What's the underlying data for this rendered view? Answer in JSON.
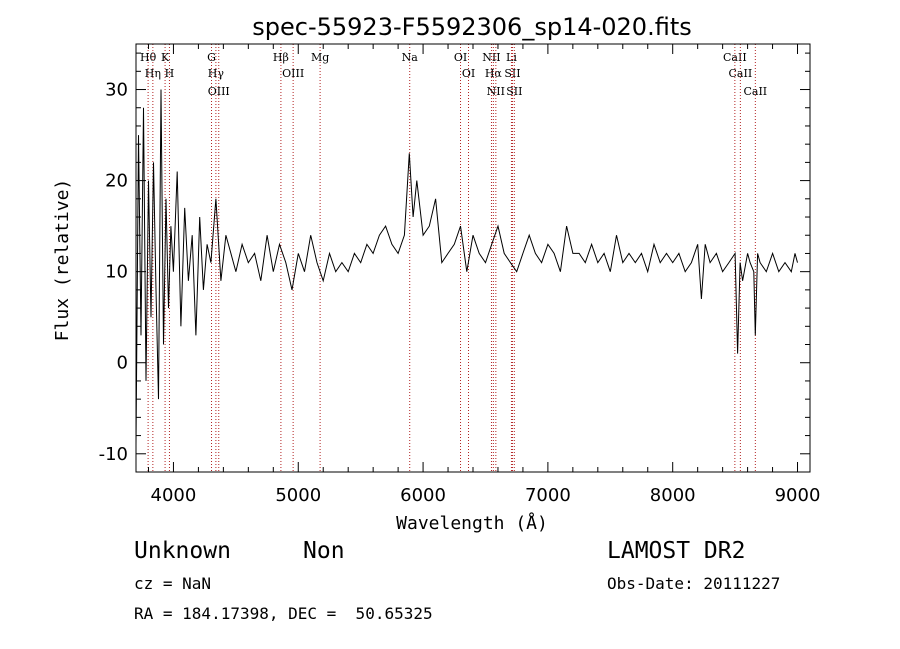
{
  "chart_data": {
    "type": "line",
    "title": "spec-55923-F5592306_sp14-020.fits",
    "xlabel": "Wavelength (Å)",
    "ylabel": "Flux (relative)",
    "xlim": [
      3700,
      9100
    ],
    "ylim": [
      -12,
      35
    ],
    "xticks": [
      4000,
      5000,
      6000,
      7000,
      8000,
      9000
    ],
    "yticks": [
      -10,
      0,
      10,
      20,
      30
    ],
    "grid": false,
    "series": [
      {
        "x": [
          3700,
          3720,
          3740,
          3760,
          3780,
          3800,
          3820,
          3840,
          3860,
          3880,
          3900,
          3920,
          3940,
          3960,
          3980,
          4000,
          4030,
          4060,
          4090,
          4120,
          4150,
          4180,
          4210,
          4240,
          4270,
          4300,
          4340,
          4380,
          4420,
          4460,
          4500,
          4550,
          4600,
          4650,
          4700,
          4750,
          4800,
          4850,
          4900,
          4950,
          5000,
          5050,
          5100,
          5150,
          5200,
          5250,
          5300,
          5350,
          5400,
          5450,
          5500,
          5550,
          5600,
          5650,
          5700,
          5750,
          5800,
          5850,
          5890,
          5920,
          5950,
          6000,
          6050,
          6100,
          6150,
          6200,
          6250,
          6300,
          6350,
          6400,
          6450,
          6500,
          6550,
          6600,
          6650,
          6700,
          6750,
          6800,
          6850,
          6900,
          6950,
          7000,
          7050,
          7100,
          7150,
          7200,
          7250,
          7300,
          7350,
          7400,
          7450,
          7500,
          7550,
          7600,
          7650,
          7700,
          7750,
          7800,
          7850,
          7900,
          7950,
          8000,
          8050,
          8100,
          8150,
          8200,
          8230,
          8260,
          8300,
          8350,
          8400,
          8450,
          8500,
          8520,
          8540,
          8560,
          8600,
          8620,
          8650,
          8662,
          8680,
          8700,
          8750,
          8800,
          8850,
          8900,
          8950,
          8980,
          9000
        ],
        "y": [
          -9,
          25,
          3,
          28,
          -2,
          20,
          5,
          22,
          8,
          -4,
          30,
          2,
          18,
          6,
          15,
          10,
          21,
          4,
          17,
          9,
          14,
          3,
          16,
          8,
          13,
          11,
          18,
          9,
          14,
          12,
          10,
          13,
          11,
          12,
          9,
          14,
          10,
          13,
          11,
          8,
          12,
          10,
          14,
          11,
          9,
          12,
          10,
          11,
          10,
          12,
          11,
          13,
          12,
          14,
          15,
          13,
          12,
          14,
          23,
          16,
          20,
          14,
          15,
          18,
          11,
          12,
          13,
          15,
          10,
          14,
          12,
          11,
          13,
          15,
          12,
          11,
          10,
          12,
          14,
          12,
          11,
          13,
          12,
          10,
          15,
          12,
          12,
          11,
          13,
          11,
          12,
          10,
          14,
          11,
          12,
          11,
          12,
          10,
          13,
          11,
          12,
          11,
          12,
          10,
          11,
          13,
          7,
          13,
          11,
          12,
          10,
          11,
          12,
          1,
          11,
          9,
          12,
          11,
          10,
          3,
          12,
          11,
          10,
          12,
          10,
          11,
          10,
          12,
          11
        ],
        "color": "#000000"
      }
    ],
    "lines": [
      {
        "label": "Hη",
        "x": 3835
      },
      {
        "label": "Hθ",
        "x": 3797
      },
      {
        "label": "H",
        "x": 3968
      },
      {
        "label": "K",
        "x": 3933
      },
      {
        "label": "Hγ",
        "x": 4340
      },
      {
        "label": "G",
        "x": 4305
      },
      {
        "label": "OIII",
        "x": 4363
      },
      {
        "label": "OIII",
        "x": 4959
      },
      {
        "label": "Hβ",
        "x": 4861
      },
      {
        "label": "Mg",
        "x": 5175
      },
      {
        "label": "Na",
        "x": 5893
      },
      {
        "label": "OI",
        "x": 6300
      },
      {
        "label": "OI",
        "x": 6364
      },
      {
        "label": "Hα",
        "x": 6563
      },
      {
        "label": "NII",
        "x": 6548
      },
      {
        "label": "NII",
        "x": 6583
      },
      {
        "label": "SII",
        "x": 6716
      },
      {
        "label": "SII",
        "x": 6731
      },
      {
        "label": "Li",
        "x": 6708
      },
      {
        "label": "CaII",
        "x": 8498
      },
      {
        "label": "CaII",
        "x": 8542
      },
      {
        "label": "CaII",
        "x": 8662
      }
    ]
  },
  "info": {
    "class": "Unknown",
    "subclass": "Non",
    "cz": "cz = NaN",
    "coords": "RA = 184.17398, DEC =  50.65325",
    "survey": "LAMOST DR2",
    "obsdate": "Obs-Date: 20111227"
  }
}
